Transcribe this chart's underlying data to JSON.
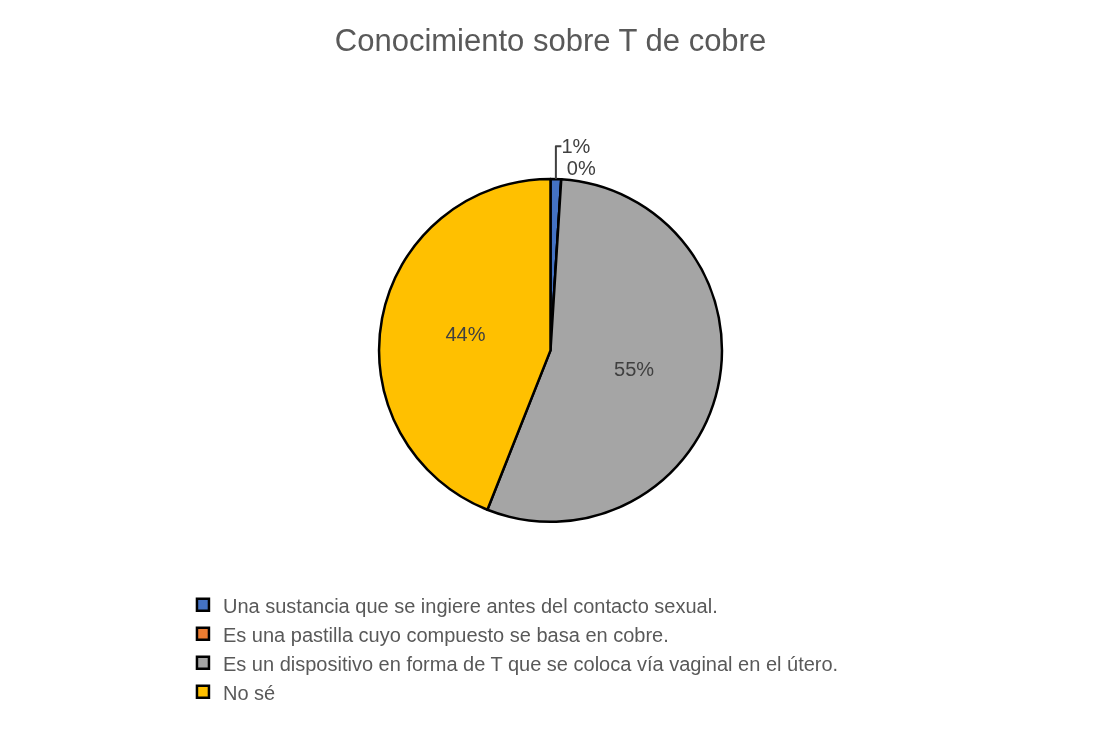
{
  "chart_data": {
    "type": "pie",
    "title": "Conocimiento sobre T de cobre",
    "categories": [
      "Una sustancia que se ingiere antes del contacto sexual.",
      "Es una pastilla cuyo compuesto se basa en cobre.",
      "Es un dispositivo en forma de T que se coloca vía vaginal en el útero.",
      "No sé"
    ],
    "values": [
      1,
      0,
      55,
      44
    ],
    "value_labels": [
      "1%",
      "0%",
      "55%",
      "44%"
    ],
    "colors": [
      "#4472c4",
      "#ed7d31",
      "#a5a5a5",
      "#ffc000"
    ],
    "legend": "bottom"
  }
}
